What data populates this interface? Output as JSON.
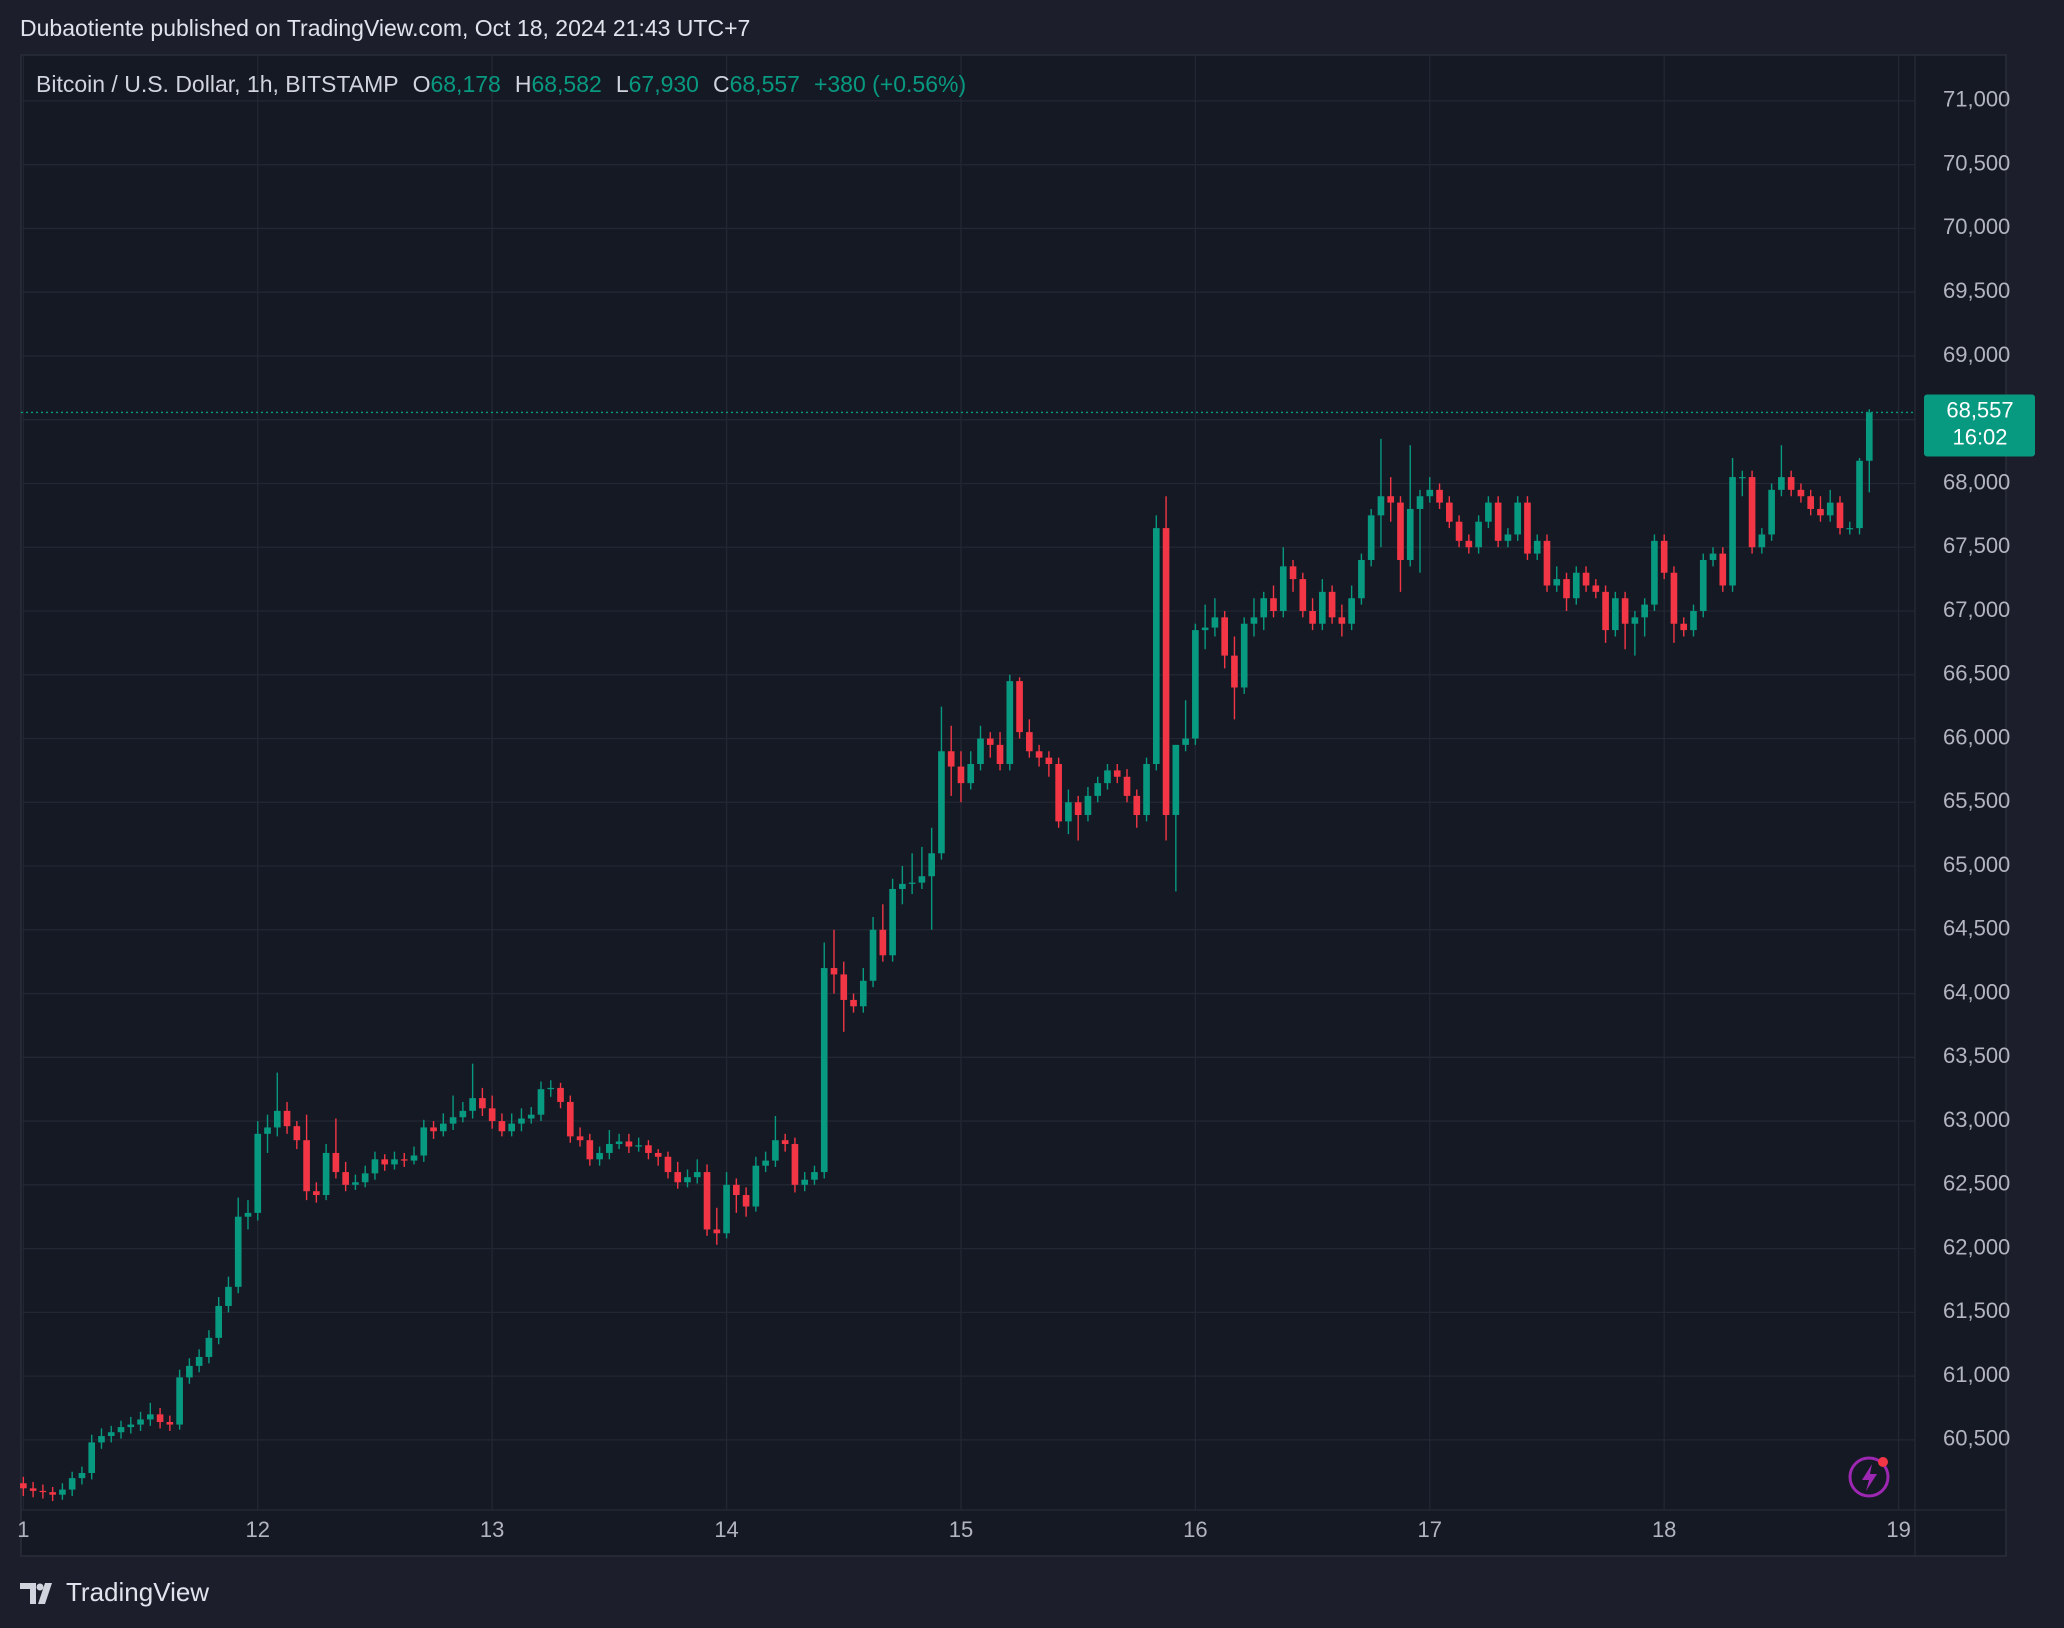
{
  "header": {
    "published": "Dubaotiente published on TradingView.com, Oct 18, 2024 21:43 UTC+7"
  },
  "footer": {
    "brand": "TradingView"
  },
  "chart_data": {
    "type": "candlestick",
    "legend": {
      "symbol": "Bitcoin / U.S. Dollar, 1h, BITSTAMP",
      "open_letter": "O",
      "open": "68,178",
      "high_letter": "H",
      "high": "68,582",
      "low_letter": "L",
      "low": "67,930",
      "close_letter": "C",
      "close": "68,557",
      "change": "+380 (+0.56%)"
    },
    "last_price_label": "68,557",
    "countdown": "16:02",
    "up_color": "#089981",
    "down_color": "#f23645",
    "grid": true,
    "xlim": [
      10.99,
      19.07
    ],
    "xticks": [
      {
        "value": 11,
        "label": "1"
      },
      12,
      13,
      14,
      15,
      16,
      17,
      18,
      19
    ],
    "ylim": [
      59950,
      71360
    ],
    "yticks": [
      {
        "value": 60500,
        "label": "60,500"
      },
      {
        "value": 61000,
        "label": "61,000"
      },
      {
        "value": 61500,
        "label": "61,500"
      },
      {
        "value": 62000,
        "label": "62,000"
      },
      {
        "value": 62500,
        "label": "62,500"
      },
      {
        "value": 63000,
        "label": "63,000"
      },
      {
        "value": 63500,
        "label": "63,500"
      },
      {
        "value": 64000,
        "label": "64,000"
      },
      {
        "value": 64500,
        "label": "64,500"
      },
      {
        "value": 65000,
        "label": "65,000"
      },
      {
        "value": 65500,
        "label": "65,500"
      },
      {
        "value": 66000,
        "label": "66,000"
      },
      {
        "value": 66500,
        "label": "66,500"
      },
      {
        "value": 67000,
        "label": "67,000"
      },
      {
        "value": 67500,
        "label": "67,500"
      },
      {
        "value": 68000,
        "label": "68,000"
      },
      {
        "value": 68500,
        "label": "68,500"
      },
      {
        "value": 69000,
        "label": "69,000"
      },
      {
        "value": 69500,
        "label": "69,500"
      },
      {
        "value": 70000,
        "label": "70,000"
      },
      {
        "value": 70500,
        "label": "70,500"
      },
      {
        "value": 71000,
        "label": "71,000"
      }
    ],
    "ohlc": [
      [
        60160,
        60210,
        60060,
        60120
      ],
      [
        60120,
        60170,
        60050,
        60100
      ],
      [
        60100,
        60150,
        60040,
        60090
      ],
      [
        60090,
        60130,
        60020,
        60070
      ],
      [
        60070,
        60160,
        60030,
        60110
      ],
      [
        60110,
        60250,
        60060,
        60200
      ],
      [
        60200,
        60290,
        60150,
        60240
      ],
      [
        60240,
        60540,
        60190,
        60480
      ],
      [
        60480,
        60590,
        60430,
        60530
      ],
      [
        60530,
        60610,
        60480,
        60560
      ],
      [
        60560,
        60650,
        60510,
        60600
      ],
      [
        60600,
        60680,
        60550,
        60620
      ],
      [
        60620,
        60720,
        60570,
        60660
      ],
      [
        60660,
        60790,
        60610,
        60700
      ],
      [
        60700,
        60750,
        60590,
        60640
      ],
      [
        60640,
        60690,
        60570,
        60620
      ],
      [
        60620,
        61050,
        60580,
        60990
      ],
      [
        60990,
        61140,
        60940,
        61080
      ],
      [
        61080,
        61210,
        61030,
        61150
      ],
      [
        61150,
        61360,
        61100,
        61300
      ],
      [
        61300,
        61620,
        61250,
        61550
      ],
      [
        61550,
        61780,
        61500,
        61700
      ],
      [
        61700,
        62400,
        61650,
        62250
      ],
      [
        62250,
        62380,
        62150,
        62280
      ],
      [
        62280,
        63000,
        62220,
        62900
      ],
      [
        62900,
        63050,
        62750,
        62950
      ],
      [
        62950,
        63380,
        62880,
        63080
      ],
      [
        63080,
        63150,
        62900,
        62960
      ],
      [
        62960,
        63000,
        62780,
        62850
      ],
      [
        62850,
        63050,
        62380,
        62450
      ],
      [
        62450,
        62520,
        62360,
        62420
      ],
      [
        62420,
        62820,
        62380,
        62750
      ],
      [
        62750,
        63020,
        62550,
        62600
      ],
      [
        62600,
        62680,
        62450,
        62500
      ],
      [
        62500,
        62580,
        62460,
        62520
      ],
      [
        62520,
        62650,
        62480,
        62590
      ],
      [
        62590,
        62760,
        62540,
        62700
      ],
      [
        62700,
        62740,
        62610,
        62660
      ],
      [
        62660,
        62760,
        62620,
        62700
      ],
      [
        62700,
        62750,
        62640,
        62690
      ],
      [
        62690,
        62800,
        62660,
        62730
      ],
      [
        62730,
        63010,
        62680,
        62950
      ],
      [
        62950,
        63000,
        62860,
        62920
      ],
      [
        62920,
        63060,
        62880,
        62980
      ],
      [
        62980,
        63200,
        62930,
        63030
      ],
      [
        63030,
        63150,
        62990,
        63080
      ],
      [
        63080,
        63450,
        63020,
        63180
      ],
      [
        63180,
        63260,
        63040,
        63100
      ],
      [
        63100,
        63200,
        62940,
        63000
      ],
      [
        63000,
        63060,
        62880,
        62920
      ],
      [
        62920,
        63060,
        62880,
        62980
      ],
      [
        62980,
        63100,
        62920,
        63020
      ],
      [
        63020,
        63110,
        62980,
        63050
      ],
      [
        63050,
        63310,
        63000,
        63250
      ],
      [
        63250,
        63320,
        63190,
        63260
      ],
      [
        63260,
        63300,
        63100,
        63150
      ],
      [
        63150,
        63200,
        62830,
        62880
      ],
      [
        62880,
        62950,
        62800,
        62850
      ],
      [
        62850,
        62900,
        62650,
        62700
      ],
      [
        62700,
        62800,
        62650,
        62750
      ],
      [
        62750,
        62930,
        62700,
        62820
      ],
      [
        62820,
        62900,
        62780,
        62840
      ],
      [
        62840,
        62900,
        62750,
        62800
      ],
      [
        62800,
        62870,
        62760,
        62810
      ],
      [
        62810,
        62850,
        62700,
        62750
      ],
      [
        62750,
        62780,
        62650,
        62720
      ],
      [
        62720,
        62760,
        62550,
        62600
      ],
      [
        62600,
        62680,
        62470,
        62520
      ],
      [
        62520,
        62620,
        62480,
        62560
      ],
      [
        62560,
        62700,
        62510,
        62600
      ],
      [
        62600,
        62660,
        62100,
        62150
      ],
      [
        62150,
        62320,
        62030,
        62120
      ],
      [
        62120,
        62600,
        62080,
        62500
      ],
      [
        62500,
        62550,
        62280,
        62420
      ],
      [
        62420,
        62480,
        62250,
        62330
      ],
      [
        62330,
        62720,
        62290,
        62650
      ],
      [
        62650,
        62760,
        62600,
        62690
      ],
      [
        62690,
        63040,
        62640,
        62850
      ],
      [
        62850,
        62900,
        62760,
        62820
      ],
      [
        62820,
        62870,
        62440,
        62500
      ],
      [
        62500,
        62600,
        62450,
        62540
      ],
      [
        62540,
        62650,
        62500,
        62600
      ],
      [
        62600,
        64400,
        62550,
        64200
      ],
      [
        64200,
        64500,
        64000,
        64150
      ],
      [
        64150,
        64250,
        63700,
        63950
      ],
      [
        63950,
        64000,
        63850,
        63900
      ],
      [
        63900,
        64200,
        63850,
        64100
      ],
      [
        64100,
        64600,
        64050,
        64500
      ],
      [
        64500,
        64700,
        64250,
        64300
      ],
      [
        64300,
        64900,
        64250,
        64820
      ],
      [
        64820,
        65000,
        64700,
        64860
      ],
      [
        64860,
        65100,
        64780,
        64870
      ],
      [
        64870,
        65150,
        64820,
        64920
      ],
      [
        64920,
        65300,
        64500,
        65100
      ],
      [
        65100,
        66250,
        65050,
        65900
      ],
      [
        65900,
        66100,
        65550,
        65780
      ],
      [
        65780,
        65900,
        65500,
        65650
      ],
      [
        65650,
        65900,
        65600,
        65800
      ],
      [
        65800,
        66100,
        65750,
        66000
      ],
      [
        66000,
        66050,
        65850,
        65950
      ],
      [
        65950,
        66050,
        65750,
        65800
      ],
      [
        65800,
        66500,
        65750,
        66450
      ],
      [
        66450,
        66480,
        66000,
        66050
      ],
      [
        66050,
        66150,
        65850,
        65900
      ],
      [
        65900,
        65950,
        65780,
        65850
      ],
      [
        65850,
        65900,
        65700,
        65800
      ],
      [
        65800,
        65850,
        65300,
        65350
      ],
      [
        65350,
        65600,
        65250,
        65500
      ],
      [
        65500,
        65550,
        65200,
        65400
      ],
      [
        65400,
        65620,
        65350,
        65550
      ],
      [
        65550,
        65700,
        65500,
        65650
      ],
      [
        65650,
        65800,
        65600,
        65750
      ],
      [
        65750,
        65800,
        65650,
        65700
      ],
      [
        65700,
        65760,
        65500,
        65550
      ],
      [
        65550,
        65600,
        65300,
        65400
      ],
      [
        65400,
        65850,
        65350,
        65800
      ],
      [
        65800,
        67750,
        65750,
        67650
      ],
      [
        67650,
        67900,
        65200,
        65400
      ],
      [
        65400,
        65950,
        64800,
        65950
      ],
      [
        65950,
        66300,
        65900,
        66000
      ],
      [
        66000,
        66900,
        65950,
        66850
      ],
      [
        66850,
        67050,
        66700,
        66870
      ],
      [
        66870,
        67100,
        66800,
        66950
      ],
      [
        66950,
        67000,
        66550,
        66650
      ],
      [
        66650,
        66800,
        66150,
        66400
      ],
      [
        66400,
        66950,
        66350,
        66900
      ],
      [
        66900,
        67100,
        66800,
        66950
      ],
      [
        66950,
        67150,
        66850,
        67100
      ],
      [
        67100,
        67200,
        66950,
        67000
      ],
      [
        67000,
        67500,
        66950,
        67350
      ],
      [
        67350,
        67400,
        67150,
        67250
      ],
      [
        67250,
        67300,
        66950,
        67000
      ],
      [
        67000,
        67100,
        66850,
        66900
      ],
      [
        66900,
        67250,
        66850,
        67150
      ],
      [
        67150,
        67200,
        66900,
        66950
      ],
      [
        66950,
        67050,
        66800,
        66900
      ],
      [
        66900,
        67200,
        66850,
        67100
      ],
      [
        67100,
        67450,
        67050,
        67400
      ],
      [
        67400,
        67800,
        67350,
        67750
      ],
      [
        67750,
        68350,
        67500,
        67900
      ],
      [
        67900,
        68050,
        67700,
        67850
      ],
      [
        67850,
        67900,
        67150,
        67400
      ],
      [
        67400,
        68300,
        67350,
        67800
      ],
      [
        67800,
        67950,
        67300,
        67900
      ],
      [
        67900,
        68050,
        67850,
        67950
      ],
      [
        67950,
        68000,
        67800,
        67850
      ],
      [
        67850,
        67900,
        67650,
        67700
      ],
      [
        67700,
        67750,
        67500,
        67550
      ],
      [
        67550,
        67600,
        67450,
        67500
      ],
      [
        67500,
        67750,
        67450,
        67700
      ],
      [
        67700,
        67900,
        67650,
        67850
      ],
      [
        67850,
        67900,
        67500,
        67550
      ],
      [
        67550,
        67650,
        67500,
        67600
      ],
      [
        67600,
        67900,
        67550,
        67850
      ],
      [
        67850,
        67900,
        67400,
        67450
      ],
      [
        67450,
        67600,
        67400,
        67550
      ],
      [
        67550,
        67600,
        67150,
        67200
      ],
      [
        67200,
        67350,
        67150,
        67250
      ],
      [
        67250,
        67300,
        67000,
        67100
      ],
      [
        67100,
        67350,
        67050,
        67300
      ],
      [
        67300,
        67350,
        67150,
        67200
      ],
      [
        67200,
        67250,
        67100,
        67150
      ],
      [
        67150,
        67200,
        66750,
        66850
      ],
      [
        66850,
        67150,
        66800,
        67100
      ],
      [
        67100,
        67150,
        66700,
        66900
      ],
      [
        66900,
        67000,
        66650,
        66950
      ],
      [
        66950,
        67100,
        66800,
        67050
      ],
      [
        67050,
        67600,
        67000,
        67550
      ],
      [
        67550,
        67600,
        67250,
        67300
      ],
      [
        67300,
        67350,
        66750,
        66900
      ],
      [
        66900,
        66950,
        66800,
        66850
      ],
      [
        66850,
        67050,
        66800,
        67000
      ],
      [
        67000,
        67450,
        66950,
        67400
      ],
      [
        67400,
        67500,
        67350,
        67450
      ],
      [
        67450,
        67500,
        67150,
        67200
      ],
      [
        67200,
        68200,
        67150,
        68050
      ],
      [
        68050,
        68100,
        67900,
        68050
      ],
      [
        68050,
        68100,
        67450,
        67500
      ],
      [
        67500,
        67650,
        67450,
        67600
      ],
      [
        67600,
        68000,
        67550,
        67950
      ],
      [
        67950,
        68300,
        67900,
        68050
      ],
      [
        68050,
        68100,
        67900,
        67950
      ],
      [
        67950,
        68000,
        67850,
        67900
      ],
      [
        67900,
        67950,
        67750,
        67800
      ],
      [
        67800,
        67900,
        67700,
        67750
      ],
      [
        67750,
        67950,
        67700,
        67850
      ],
      [
        67850,
        67900,
        67600,
        67650
      ],
      [
        67650,
        67700,
        67600,
        67650
      ],
      [
        67650,
        68200,
        67600,
        68178
      ],
      [
        68178,
        68582,
        67930,
        68557
      ]
    ]
  }
}
